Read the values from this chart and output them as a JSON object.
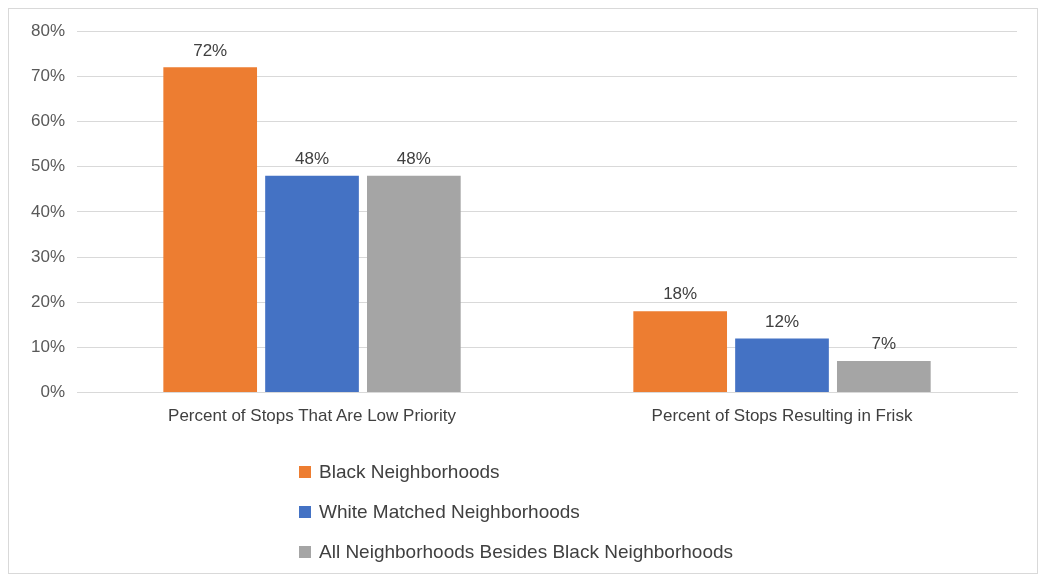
{
  "chart_data": {
    "type": "bar",
    "categories": [
      "Percent of Stops That Are Low Priority",
      "Percent of Stops Resulting in Frisk"
    ],
    "series": [
      {
        "name": "Black Neighborhoods",
        "color": "#ed7d31",
        "values": [
          72,
          18
        ],
        "value_labels": [
          "72%",
          "18%"
        ]
      },
      {
        "name": "White Matched Neighborhoods",
        "color": "#4472c4",
        "values": [
          48,
          12
        ],
        "value_labels": [
          "48%",
          "12%"
        ]
      },
      {
        "name": "All Neighborhoods Besides Black Neighborhoods",
        "color": "#a5a5a5",
        "values": [
          48,
          7
        ],
        "value_labels": [
          "48%",
          "7%"
        ]
      }
    ],
    "ylim": [
      0,
      80
    ],
    "yticks": [
      {
        "value": 0,
        "label": "0%"
      },
      {
        "value": 10,
        "label": "10%"
      },
      {
        "value": 20,
        "label": "20%"
      },
      {
        "value": 30,
        "label": "30%"
      },
      {
        "value": 40,
        "label": "40%"
      },
      {
        "value": 50,
        "label": "50%"
      },
      {
        "value": 60,
        "label": "60%"
      },
      {
        "value": 70,
        "label": "70%"
      },
      {
        "value": 80,
        "label": "80%"
      }
    ],
    "grid": "y",
    "legend": "bottom"
  }
}
